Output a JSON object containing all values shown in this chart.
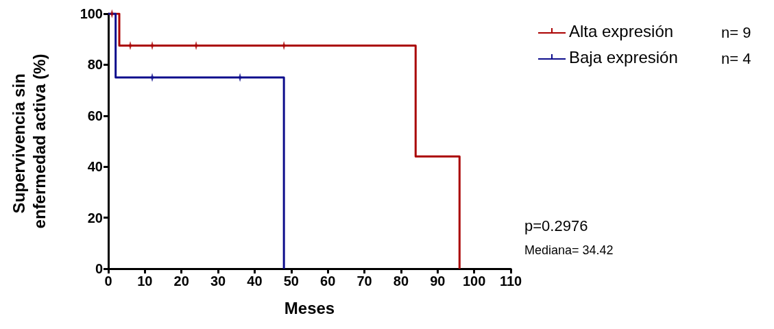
{
  "chart_data": {
    "type": "step",
    "xlabel": "Meses",
    "ylabel": "Supervivencia sin enfermedad activa (%)",
    "xlim": [
      0,
      110
    ],
    "xticks": [
      0,
      10,
      20,
      30,
      40,
      50,
      60,
      70,
      80,
      90,
      100,
      110
    ],
    "ylim": [
      0,
      100
    ],
    "yticks": [
      0,
      20,
      40,
      60,
      80,
      100
    ],
    "grid": false,
    "legend": "top right",
    "series": [
      {
        "name": "Alta expresión",
        "color": "#aa0000",
        "x": [
          0,
          3,
          84,
          96
        ],
        "values": [
          100,
          87.5,
          44,
          0
        ]
      },
      {
        "name": "Baja expresión",
        "color": "#0d0d8c",
        "x": [
          0,
          2,
          48
        ],
        "values": [
          100,
          75,
          0
        ]
      },
      {
        "type": "scatter",
        "color": "#aa0000",
        "x": [
          1,
          6,
          12,
          24,
          48
        ],
        "values": [
          100,
          87.5,
          87.5,
          87.5,
          87.5
        ]
      },
      {
        "type": "scatter",
        "color": "#0d0d8c",
        "x": [
          12,
          36
        ],
        "values": [
          75,
          75
        ]
      }
    ],
    "annotations": [
      "n= 9",
      "n= 4",
      "p=0.2976",
      "Mediana= 34.42"
    ]
  }
}
